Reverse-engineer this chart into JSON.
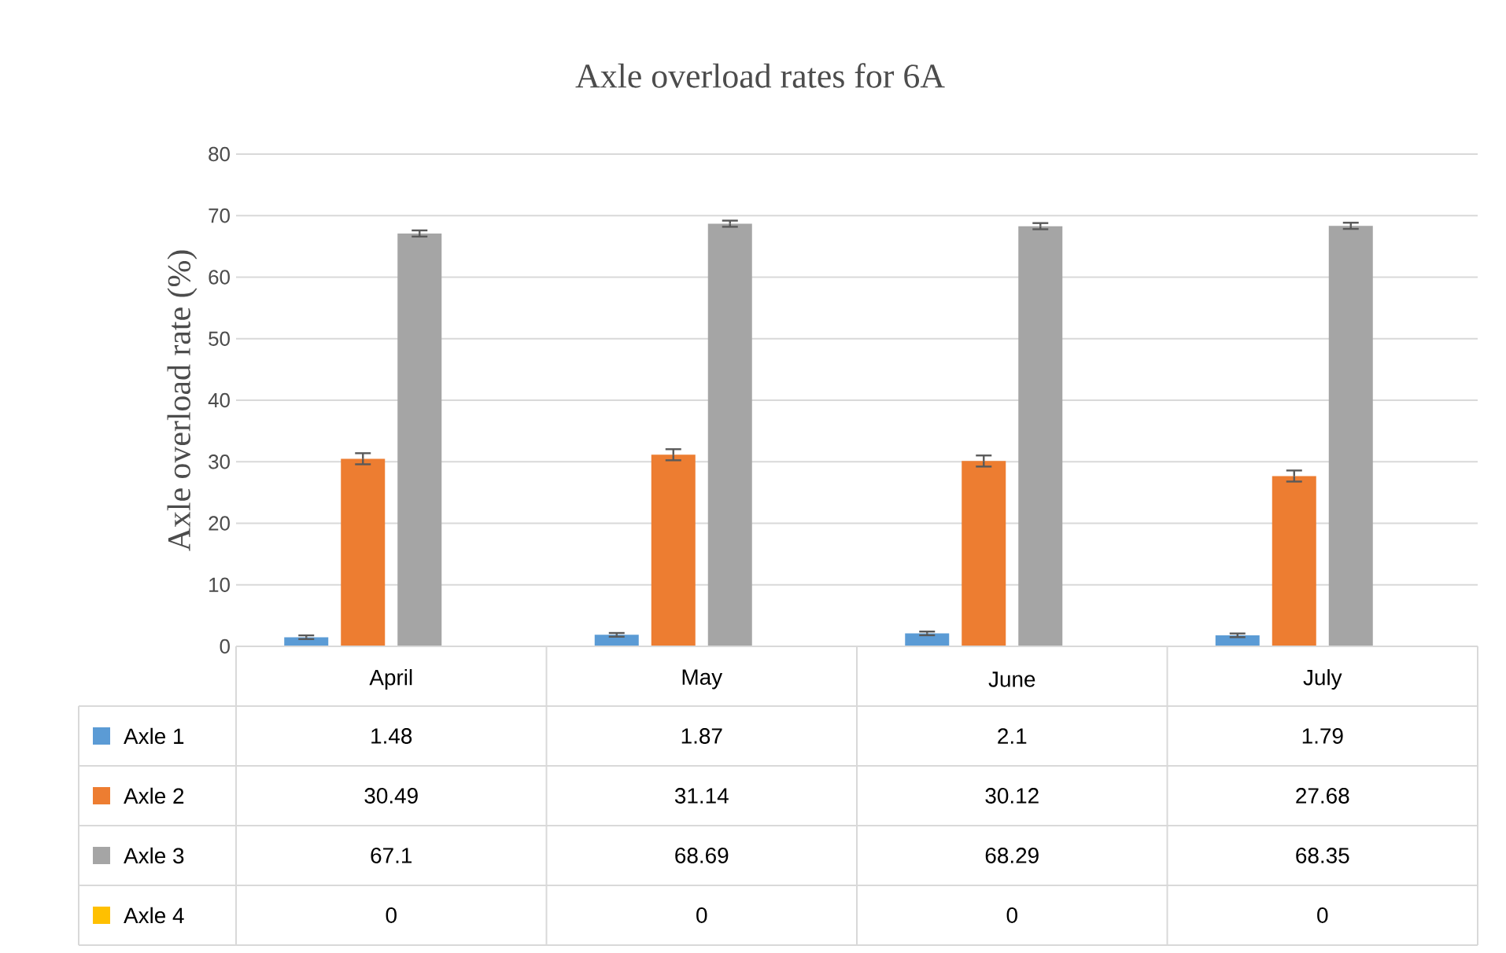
{
  "chart_data": {
    "type": "bar",
    "title": "Axle overload rates for 6A",
    "ylabel": "Axle overload rate (%)",
    "categories": [
      "April",
      "May",
      "June",
      "July"
    ],
    "series": [
      {
        "name": "Axle 1",
        "color": "#5b9bd5",
        "values": [
          1.48,
          1.87,
          2.1,
          1.79
        ],
        "errors": [
          0.3,
          0.3,
          0.3,
          0.3
        ]
      },
      {
        "name": "Axle 2",
        "color": "#ed7d31",
        "values": [
          30.49,
          31.14,
          30.12,
          27.68
        ],
        "errors": [
          0.9,
          0.9,
          0.9,
          0.9
        ]
      },
      {
        "name": "Axle 3",
        "color": "#a5a5a5",
        "values": [
          67.1,
          68.69,
          68.29,
          68.35
        ],
        "errors": [
          0.5,
          0.5,
          0.5,
          0.5
        ]
      },
      {
        "name": "Axle 4",
        "color": "#ffc000",
        "values": [
          0,
          0,
          0,
          0
        ]
      }
    ],
    "ylim": [
      0,
      80
    ],
    "yticks": [
      0,
      10,
      20,
      30,
      40,
      50,
      60,
      70,
      80
    ],
    "grid": "y",
    "legend": "bottom",
    "data_labels": true
  }
}
